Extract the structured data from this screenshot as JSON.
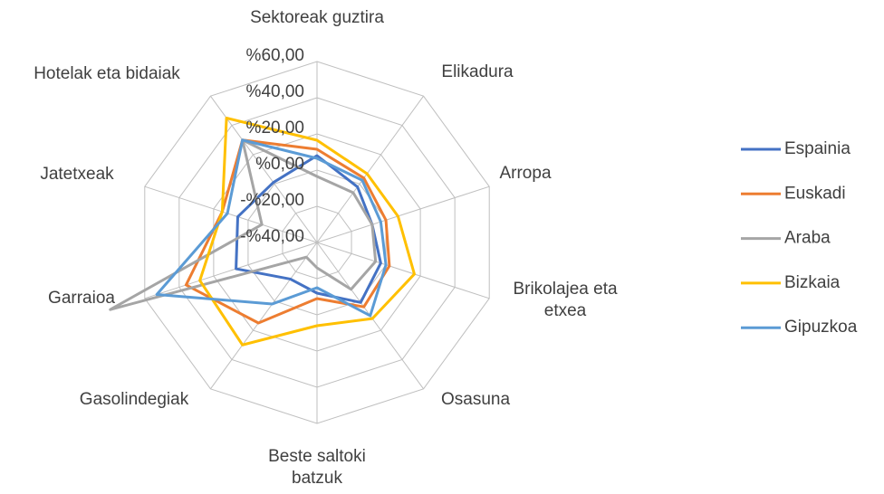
{
  "chart_data": {
    "type": "radar",
    "categories": [
      "Sektoreak guztira",
      "Elikadura",
      "Arropa",
      "Brikolajea eta etxea",
      "Osasuna",
      "Beste saltoki batzuk",
      "Gasolindegiak",
      "Garraioa",
      "Jatetxeak",
      "Hotelak eta bidaiak"
    ],
    "series": [
      {
        "name": "Espainia",
        "color": "#4472c4",
        "values": [
          8,
          -2,
          -8,
          -3,
          1,
          -12,
          -15,
          7,
          6,
          1
        ]
      },
      {
        "name": "Euskadi",
        "color": "#ed7d31",
        "values": [
          11.5,
          4,
          0,
          2,
          4,
          -9,
          15,
          36,
          15,
          30
        ]
      },
      {
        "name": "Araba",
        "color": "#a5a5a5",
        "values": [
          -3.5,
          -6,
          -8,
          -6,
          -8,
          -26,
          -30,
          80,
          -8,
          30
        ]
      },
      {
        "name": "Bizkaia",
        "color": "#ffc000",
        "values": [
          16.5,
          7,
          7,
          16.5,
          12,
          6,
          30,
          28,
          15,
          45
        ]
      },
      {
        "name": "Gipuzkoa",
        "color": "#5b9bd5",
        "values": [
          6.5,
          2.5,
          -3,
          0,
          10,
          -15,
          2,
          53,
          12,
          30
        ]
      }
    ],
    "ylim": [
      -40,
      60
    ],
    "yticks": [
      {
        "value": -40,
        "label": "-%40,00"
      },
      {
        "value": -20,
        "label": "-%20,00"
      },
      {
        "value": 0,
        "label": "%0,00"
      },
      {
        "value": 20,
        "label": "%20,00"
      },
      {
        "value": 40,
        "label": "%40,00"
      },
      {
        "value": 60,
        "label": "%60,00"
      }
    ],
    "grid": true,
    "legend": "right"
  }
}
